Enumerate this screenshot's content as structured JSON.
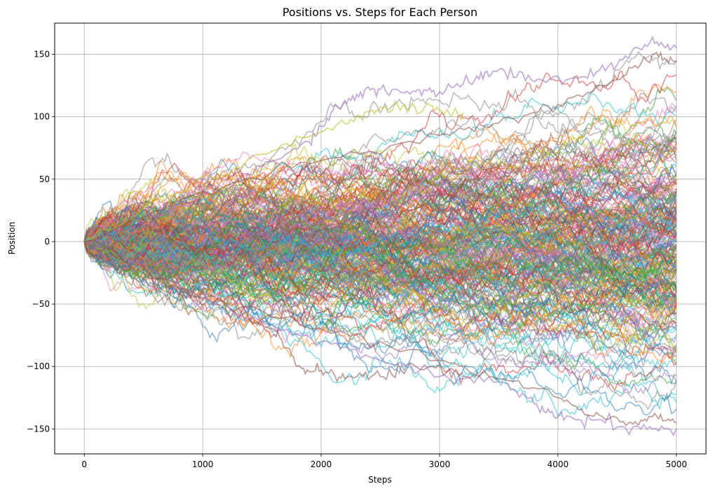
{
  "chart_data": {
    "type": "line",
    "title": "Positions vs. Steps for Each Person",
    "xlabel": "Steps",
    "ylabel": "Position",
    "xlim": [
      -250,
      5250
    ],
    "ylim": [
      -170,
      175
    ],
    "xticks": [
      0,
      1000,
      2000,
      3000,
      4000,
      5000
    ],
    "yticks": [
      -150,
      -100,
      -50,
      0,
      50,
      100,
      150
    ],
    "xtick_labels": [
      "0",
      "1000",
      "2000",
      "3000",
      "4000",
      "5000"
    ],
    "ytick_labels": [
      "−150",
      "−100",
      "−50",
      "0",
      "50",
      "100",
      "150"
    ],
    "grid": true,
    "legend": "none",
    "colors": [
      "#1f77b4",
      "#ff7f0e",
      "#2ca02c",
      "#d62728",
      "#9467bd",
      "#8c564b",
      "#e377c2",
      "#7f7f7f",
      "#bcbd22",
      "#17becf"
    ],
    "line_alpha": 0.5,
    "series_description": "About 1000 independent random walks of 5000 steps each starting at position 0; envelope grows roughly like the square root of steps.",
    "num_steps": 5000,
    "start_value": 0,
    "envelope_extremes": {
      "max": {
        "x": 4780,
        "y": 160
      },
      "min": {
        "x": 4680,
        "y": -153
      }
    },
    "highlight_paths": [
      {
        "color": "#9467bd",
        "points": [
          [
            0,
            0
          ],
          [
            500,
            15
          ],
          [
            1000,
            35
          ],
          [
            1500,
            60
          ],
          [
            1900,
            80
          ],
          [
            2100,
            105
          ],
          [
            2300,
            118
          ],
          [
            2500,
            122
          ],
          [
            2800,
            120
          ],
          [
            3000,
            120
          ],
          [
            3300,
            130
          ],
          [
            3500,
            138
          ],
          [
            3800,
            128
          ],
          [
            4200,
            132
          ],
          [
            4500,
            142
          ],
          [
            4780,
            160
          ],
          [
            5000,
            155
          ]
        ]
      },
      {
        "color": "#bcbd22",
        "points": [
          [
            0,
            0
          ],
          [
            800,
            40
          ],
          [
            1500,
            70
          ],
          [
            2000,
            88
          ],
          [
            2300,
            100
          ],
          [
            2500,
            108
          ],
          [
            2750,
            107
          ],
          [
            3000,
            105
          ],
          [
            3200,
            103
          ]
        ]
      },
      {
        "color": "#8c564b",
        "points": [
          [
            0,
            0
          ],
          [
            600,
            -30
          ],
          [
            1200,
            -55
          ],
          [
            1600,
            -70
          ],
          [
            1800,
            -100
          ],
          [
            2000,
            -103
          ],
          [
            2200,
            -110
          ],
          [
            2500,
            -108
          ],
          [
            2800,
            -100
          ],
          [
            3200,
            -105
          ]
        ]
      },
      {
        "color": "#9467bd",
        "points": [
          [
            0,
            0
          ],
          [
            800,
            -35
          ],
          [
            1500,
            -65
          ],
          [
            2000,
            -80
          ],
          [
            2500,
            -95
          ],
          [
            3000,
            -108
          ],
          [
            3500,
            -112
          ],
          [
            3800,
            -130
          ],
          [
            4000,
            -140
          ],
          [
            4300,
            -143
          ],
          [
            4700,
            -150
          ],
          [
            5000,
            -150
          ]
        ]
      },
      {
        "color": "#8c564b",
        "points": [
          [
            0,
            0
          ],
          [
            1000,
            -45
          ],
          [
            2000,
            -70
          ],
          [
            3000,
            -95
          ],
          [
            3500,
            -110
          ],
          [
            4000,
            -125
          ],
          [
            4300,
            -140
          ],
          [
            4600,
            -145
          ],
          [
            4800,
            -140
          ],
          [
            5000,
            -145
          ]
        ]
      },
      {
        "color": "#8c564b",
        "points": [
          [
            0,
            0
          ],
          [
            1000,
            40
          ],
          [
            2000,
            65
          ],
          [
            3000,
            85
          ],
          [
            3500,
            95
          ],
          [
            4000,
            110
          ],
          [
            4500,
            130
          ],
          [
            4800,
            150
          ],
          [
            5000,
            145
          ]
        ]
      }
    ]
  }
}
